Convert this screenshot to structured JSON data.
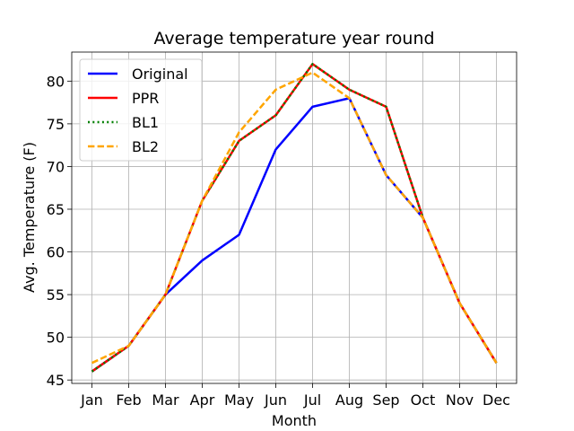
{
  "chart_data": {
    "type": "line",
    "title": "Average temperature year round",
    "xlabel": "Month",
    "ylabel": "Avg. Temperature (F)",
    "categories": [
      "Jan",
      "Feb",
      "Mar",
      "Apr",
      "May",
      "Jun",
      "Jul",
      "Aug",
      "Sep",
      "Oct",
      "Nov",
      "Dec"
    ],
    "ylim": [
      44.6,
      83.4
    ],
    "yticks": [
      45,
      50,
      55,
      60,
      65,
      70,
      75,
      80
    ],
    "grid": true,
    "legend_position": "top-left",
    "series": [
      {
        "name": "Original",
        "color": "#0000ff",
        "style": "solid",
        "values": [
          46,
          49,
          55,
          59,
          62,
          72,
          77,
          78,
          69,
          64,
          54,
          47
        ]
      },
      {
        "name": "PPR",
        "color": "#ff0000",
        "style": "solid",
        "values": [
          46,
          49,
          55,
          66,
          73,
          76,
          82,
          79,
          77,
          64,
          54,
          47
        ]
      },
      {
        "name": "BL1",
        "color": "#008000",
        "style": "dotted",
        "values": [
          46,
          49,
          55,
          66,
          73,
          76,
          82,
          79,
          77,
          64,
          54,
          47
        ]
      },
      {
        "name": "BL2",
        "color": "#ffa500",
        "style": "dashed",
        "values": [
          47,
          49,
          55,
          66,
          74,
          79,
          81,
          78,
          69,
          64,
          54,
          47
        ]
      }
    ]
  }
}
